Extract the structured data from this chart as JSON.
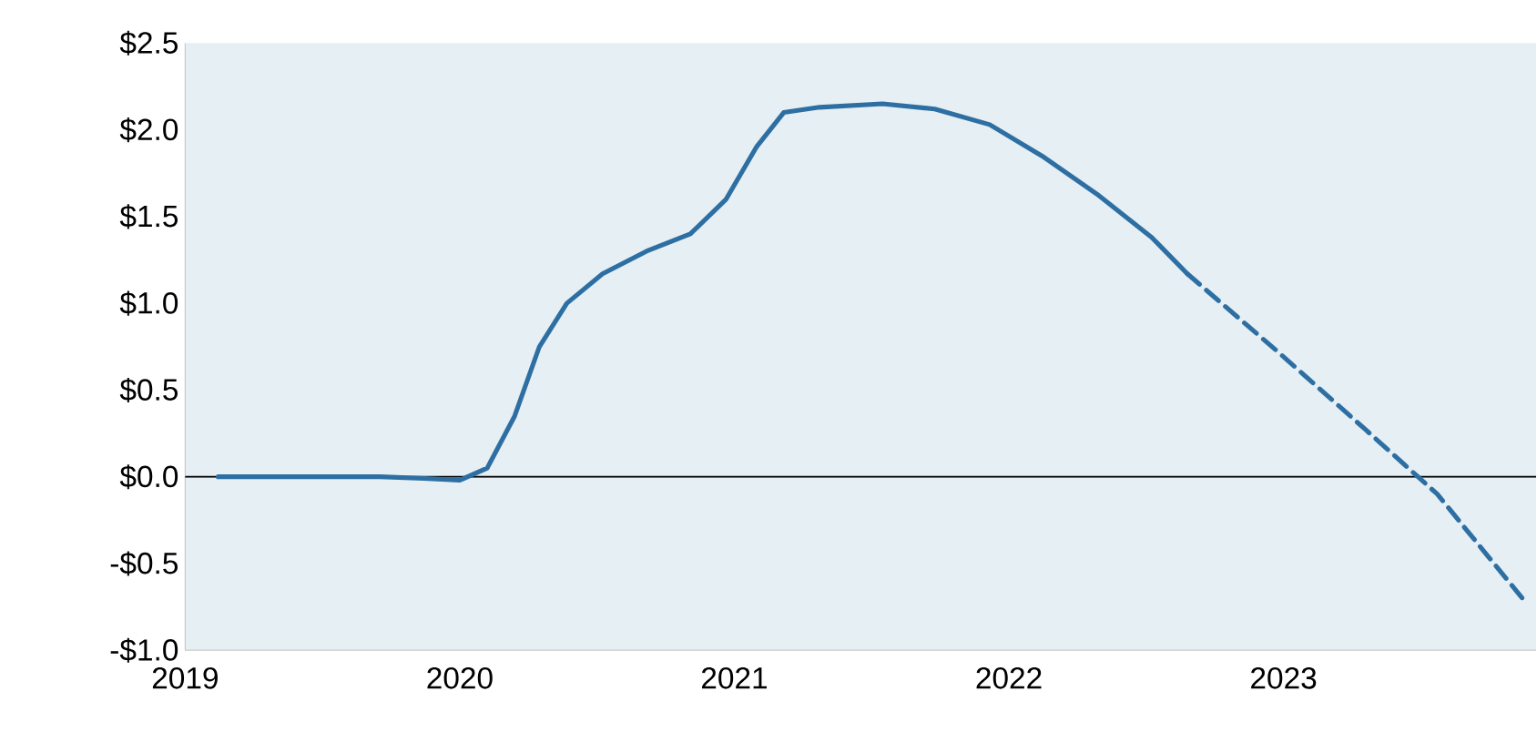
{
  "chart_data": {
    "type": "line",
    "xlim": [
      2019,
      2023.92
    ],
    "xticks": [
      2019,
      2020,
      2021,
      2022,
      2023
    ],
    "ylim": [
      -1.0,
      2.5
    ],
    "yticks": [
      {
        "value": -1.0,
        "label": "-$1.0"
      },
      {
        "value": -0.5,
        "label": "-$0.5"
      },
      {
        "value": 0.0,
        "label": "$0.0"
      },
      {
        "value": 0.5,
        "label": "$0.5"
      },
      {
        "value": 1.0,
        "label": "$1.0"
      },
      {
        "value": 1.5,
        "label": "$1.5"
      },
      {
        "value": 2.0,
        "label": "$2.0"
      },
      {
        "value": 2.5,
        "label": "$2.5"
      }
    ],
    "grid": false,
    "ref_lines": [
      {
        "axis": "y",
        "value": 0,
        "color": "#000000"
      }
    ],
    "series": [
      {
        "color": "#2e6fa3",
        "line_style": "solid",
        "x": [
          2019.12,
          2019.71,
          2019.87,
          2020.0,
          2020.1,
          2020.2,
          2020.29,
          2020.39,
          2020.52,
          2020.68,
          2020.84,
          2020.97,
          2021.08,
          2021.18,
          2021.31,
          2021.54,
          2021.73,
          2021.93,
          2022.12,
          2022.32,
          2022.52,
          2022.65
        ],
        "values": [
          0,
          0,
          -0.01,
          -0.02,
          0.05,
          0.35,
          0.75,
          1.0,
          1.17,
          1.3,
          1.4,
          1.6,
          1.9,
          2.1,
          2.13,
          2.15,
          2.12,
          2.03,
          1.85,
          1.63,
          1.38,
          1.17
        ]
      },
      {
        "color": "#2e6fa3",
        "line_style": "dashed",
        "x": [
          2022.65,
          2022.98,
          2023.3,
          2023.56,
          2023.88
        ],
        "values": [
          1.17,
          0.72,
          0.27,
          -0.1,
          -0.72
        ]
      }
    ]
  }
}
